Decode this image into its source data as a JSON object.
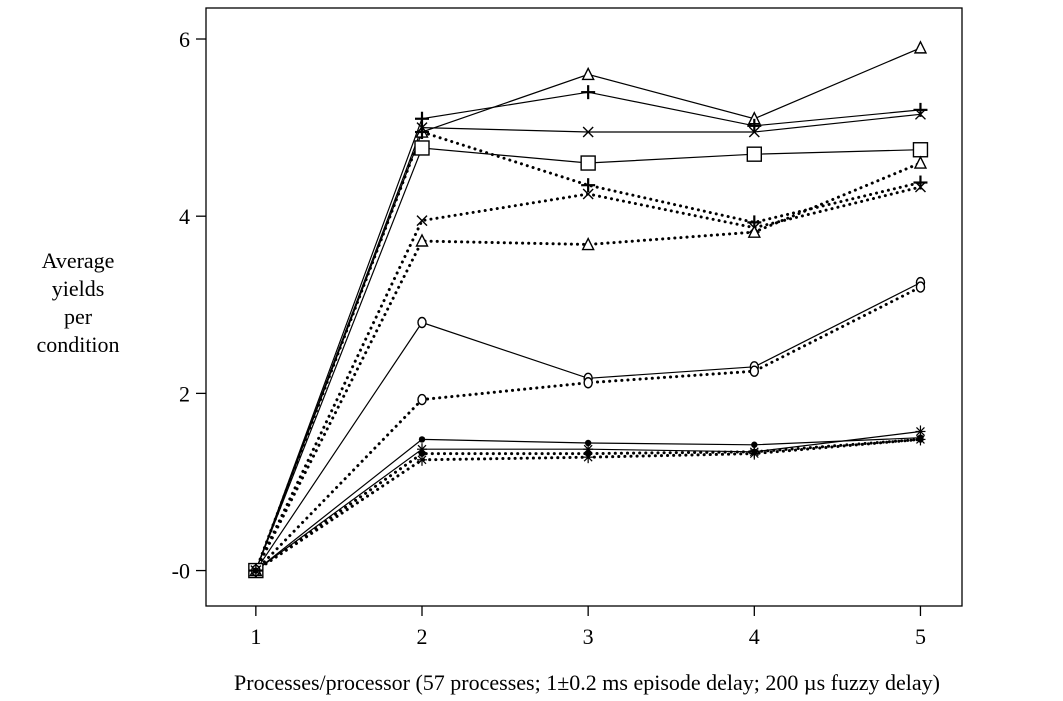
{
  "chart_data": {
    "type": "line",
    "title": "",
    "xlabel": "Processes/processor (57 processes; 1±0.2 ms episode delay; 200 µs fuzzy delay)",
    "ylabel": [
      "Average",
      "yields",
      "per",
      "condition"
    ],
    "xlim": [
      0.7,
      5.25
    ],
    "ylim": [
      -0.4,
      6.35
    ],
    "xticks": [
      1,
      2,
      3,
      4,
      5
    ],
    "yticks": [
      0,
      2,
      4,
      6
    ],
    "ytick_labels": [
      "-0",
      "2",
      "4",
      "6"
    ],
    "grid": false,
    "legend": "none",
    "x": [
      1,
      2,
      3,
      4,
      5
    ],
    "series": [
      {
        "marker": "triangle",
        "style": "solid",
        "values": [
          0,
          4.95,
          5.6,
          5.1,
          5.9
        ]
      },
      {
        "marker": "plus",
        "style": "solid",
        "values": [
          0,
          5.1,
          5.4,
          5.02,
          5.2
        ]
      },
      {
        "marker": "x",
        "style": "solid",
        "values": [
          0,
          5.0,
          4.95,
          4.95,
          5.15
        ]
      },
      {
        "marker": "square",
        "style": "solid",
        "values": [
          0,
          4.77,
          4.6,
          4.7,
          4.75
        ]
      },
      {
        "marker": "circle",
        "style": "solid",
        "values": [
          0,
          2.8,
          2.17,
          2.3,
          3.25
        ]
      },
      {
        "marker": "dot",
        "style": "solid",
        "values": [
          0,
          1.48,
          1.44,
          1.42,
          1.5
        ]
      },
      {
        "marker": "asterisk",
        "style": "solid",
        "values": [
          0,
          1.37,
          1.37,
          1.34,
          1.57
        ]
      },
      {
        "marker": "plus",
        "style": "dotted",
        "values": [
          0,
          4.95,
          4.35,
          3.93,
          4.38
        ]
      },
      {
        "marker": "x",
        "style": "dotted",
        "values": [
          0,
          3.95,
          4.25,
          3.87,
          4.33
        ]
      },
      {
        "marker": "triangle",
        "style": "dotted",
        "values": [
          0,
          3.72,
          3.68,
          3.82,
          4.6
        ]
      },
      {
        "marker": "circle",
        "style": "dotted",
        "values": [
          0,
          1.93,
          2.12,
          2.25,
          3.2
        ]
      },
      {
        "marker": "dot",
        "style": "dotted",
        "values": [
          0,
          1.32,
          1.32,
          1.34,
          1.48
        ]
      },
      {
        "marker": "asterisk",
        "style": "dotted",
        "values": [
          0,
          1.25,
          1.28,
          1.32,
          1.48
        ]
      }
    ]
  }
}
